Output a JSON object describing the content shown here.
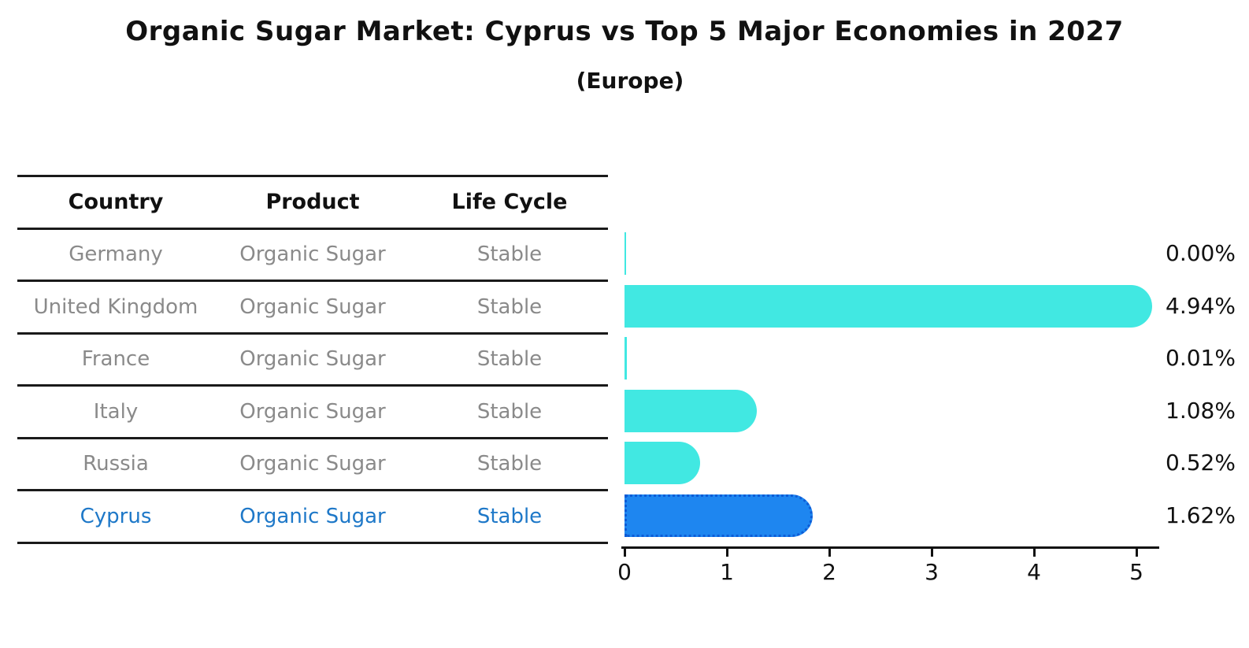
{
  "title": "Organic Sugar Market: Cyprus vs Top 5 Major Economies in 2027",
  "subtitle": "(Europe)",
  "table": {
    "headers": [
      "Country",
      "Product",
      "Life Cycle"
    ],
    "rows": [
      {
        "country": "Germany",
        "product": "Organic Sugar",
        "life_cycle": "Stable",
        "highlight": false
      },
      {
        "country": "United Kingdom",
        "product": "Organic Sugar",
        "life_cycle": "Stable",
        "highlight": false
      },
      {
        "country": "France",
        "product": "Organic Sugar",
        "life_cycle": "Stable",
        "highlight": false
      },
      {
        "country": "Italy",
        "product": "Organic Sugar",
        "life_cycle": "Stable",
        "highlight": false
      },
      {
        "country": "Russia",
        "product": "Organic Sugar",
        "life_cycle": "Stable",
        "highlight": false
      },
      {
        "country": "Cyprus",
        "product": "Organic Sugar",
        "life_cycle": "Stable",
        "highlight": true
      }
    ]
  },
  "chart_data": {
    "type": "bar",
    "orientation": "horizontal",
    "title": "Organic Sugar Market: Cyprus vs Top 5 Major Economies in 2027",
    "subtitle": "(Europe)",
    "categories": [
      "Germany",
      "United Kingdom",
      "France",
      "Italy",
      "Russia",
      "Cyprus"
    ],
    "values": [
      0.0,
      4.94,
      0.01,
      1.08,
      0.52,
      1.62
    ],
    "value_labels": [
      "0.00%",
      "4.94%",
      "0.01%",
      "1.08%",
      "0.52%",
      "1.62%"
    ],
    "x_ticks": [
      "0",
      "1",
      "2",
      "3",
      "4",
      "5"
    ],
    "xlim": [
      0,
      5.25
    ],
    "grid": false,
    "legend": "none",
    "xlabel": "",
    "ylabel": "",
    "bar_color": "#41E8E2",
    "highlight_category": "Cyprus",
    "highlight_bar_color": "#1E86F0",
    "highlight_border_color": "#0D5CD6",
    "highlight_text_color": "#1E78C8",
    "row_text_color": "#8A8A8A",
    "axis_color": "#111111",
    "label_color": "#111111"
  }
}
